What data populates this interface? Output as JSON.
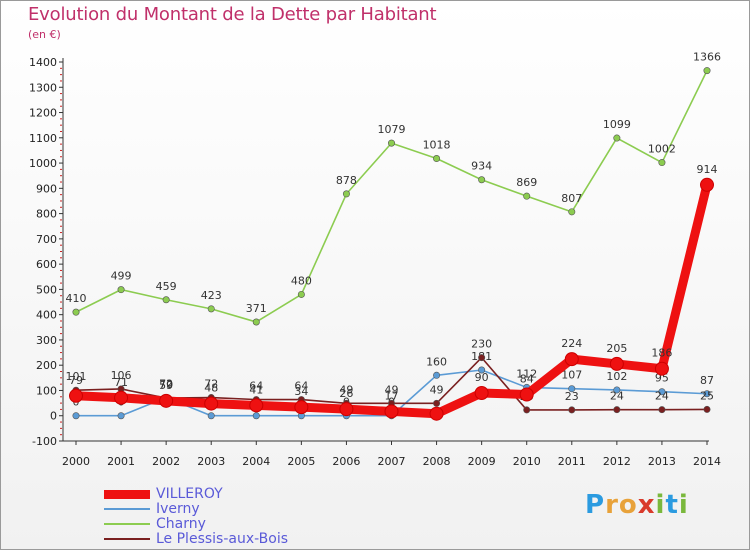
{
  "title": "Evolution du Montant de la Dette par Habitant",
  "subtitle": "(en €)",
  "logo": {
    "letters": [
      "P",
      "r",
      "o",
      "x",
      "i",
      "t",
      "i"
    ],
    "colors": [
      "#2b9be0",
      "#e8a23a",
      "#e8a23a",
      "#d93a2b",
      "#7ab83c",
      "#2b9be0",
      "#7ab83c"
    ]
  },
  "chart_data": {
    "type": "line",
    "x": [
      "2000",
      "2001",
      "2002",
      "2003",
      "2004",
      "2005",
      "2006",
      "2007",
      "2008",
      "2009",
      "2010",
      "2011",
      "2012",
      "2013",
      "2014"
    ],
    "ylim": [
      -100,
      1400
    ],
    "yticks": [
      "-100",
      "0",
      "100",
      "200",
      "300",
      "400",
      "500",
      "600",
      "700",
      "800",
      "900",
      "1000",
      "1100",
      "1200",
      "1300",
      "1400"
    ],
    "grid": false,
    "legend_position": "bottom-left",
    "series": [
      {
        "name": "Iverny",
        "color": "#5b9bd5",
        "values": [
          0,
          0,
          72,
          0,
          0,
          0,
          0,
          0,
          160,
          181,
          112,
          107,
          102,
          95,
          87
        ],
        "labels": [
          "0",
          "0",
          "72",
          "0",
          "0",
          "0",
          "0",
          "0",
          "160",
          "181",
          "112",
          "107",
          "102",
          "95",
          "87"
        ]
      },
      {
        "name": "Charny",
        "color": "#8ccc50",
        "values": [
          410,
          499,
          459,
          423,
          371,
          480,
          878,
          1079,
          1018,
          934,
          869,
          807,
          1099,
          1002,
          1366
        ],
        "labels": [
          "410",
          "499",
          "459",
          "423",
          "371",
          "480",
          "878",
          "1079",
          "1018",
          "934",
          "869",
          "807",
          "1099",
          "1002",
          "1366"
        ]
      },
      {
        "name": "Le Plessis-aux-Bois",
        "color": "#7a2020",
        "values": [
          101,
          106,
          70,
          72,
          64,
          64,
          49,
          49,
          49,
          230,
          23,
          23,
          24,
          24,
          25
        ],
        "labels": [
          "101",
          "106",
          "70",
          "72",
          "64",
          "64",
          "49",
          "49",
          "49",
          "230",
          "23",
          "23",
          "24",
          "24",
          "25"
        ]
      },
      {
        "name": "VILLEROY",
        "color": "#ee1111",
        "values": [
          79,
          71,
          59,
          48,
          41,
          34,
          26,
          17,
          8,
          90,
          84,
          224,
          205,
          186,
          914
        ],
        "labels": [
          "79",
          "71",
          "59",
          "48",
          "41",
          "34",
          "26",
          "17",
          "",
          "90",
          "84",
          "224",
          "205",
          "186",
          "914"
        ]
      }
    ],
    "legend": [
      {
        "name": "VILLEROY",
        "color": "#ee1111",
        "thickness": 9
      },
      {
        "name": "Iverny",
        "color": "#5b9bd5",
        "thickness": 2
      },
      {
        "name": "Charny",
        "color": "#8ccc50",
        "thickness": 2
      },
      {
        "name": "Le Plessis-aux-Bois",
        "color": "#7a2020",
        "thickness": 2
      }
    ]
  }
}
